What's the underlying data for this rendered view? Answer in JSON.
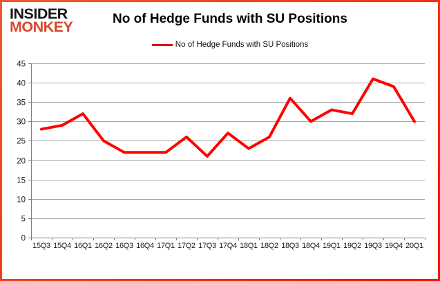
{
  "logo": {
    "line1": "INSIDER",
    "line2": "MONKEY"
  },
  "header": {
    "title": "No of Hedge Funds with SU Positions"
  },
  "legend": {
    "label": "No of Hedge Funds with SU Positions",
    "line_color": "#e60505"
  },
  "chart_data": {
    "type": "line",
    "title": "No of Hedge Funds with SU Positions",
    "categories": [
      "15Q3",
      "15Q4",
      "16Q1",
      "16Q2",
      "16Q3",
      "16Q4",
      "17Q1",
      "17Q2",
      "17Q3",
      "17Q4",
      "18Q1",
      "18Q2",
      "18Q3",
      "18Q4",
      "19Q1",
      "19Q2",
      "19Q3",
      "19Q4",
      "20Q1"
    ],
    "series": [
      {
        "name": "No of Hedge Funds with SU Positions",
        "color": "#ff0000",
        "values": [
          28,
          29,
          32,
          25,
          22,
          22,
          22,
          26,
          21,
          27,
          23,
          26,
          36,
          30,
          33,
          32,
          41,
          39,
          30
        ]
      }
    ],
    "xlabel": "",
    "ylabel": "",
    "ylim": [
      0,
      45
    ],
    "yticks": [
      0,
      5,
      10,
      15,
      20,
      25,
      30,
      35,
      40,
      45
    ],
    "grid": true,
    "legend_position": "top-center",
    "gridline_color": "#a6a6a6",
    "axis_color": "#7f7f7f",
    "text_color": "#1c1c1c",
    "border_colors": [
      "#f05a2b",
      "#ff0800"
    ]
  }
}
